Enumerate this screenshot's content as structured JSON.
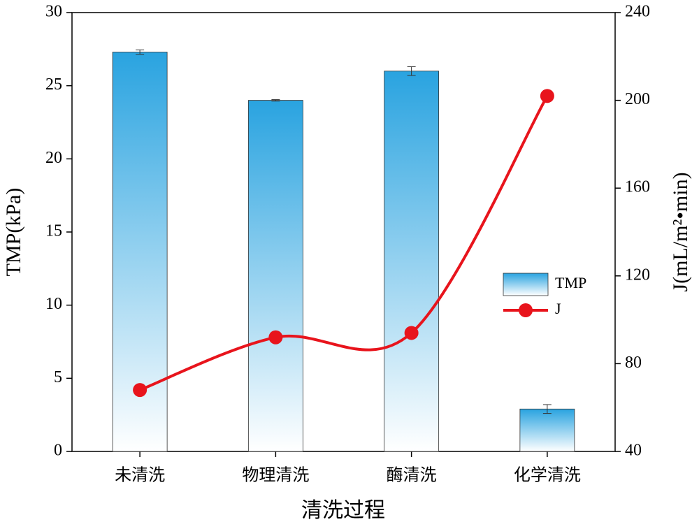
{
  "chart_data": {
    "type": "bar",
    "xlabel": "清洗过程",
    "ylabel": "TMP(kPa)",
    "y2label": "J(mL/m²•min)",
    "categories": [
      "未清洗",
      "物理清洗",
      "酶清洗",
      "化学清洗"
    ],
    "series": [
      {
        "name": "TMP",
        "type": "bar",
        "color": "#29a3e0",
        "values": [
          27.3,
          24.0,
          26.0,
          2.9
        ],
        "errors": [
          0.15,
          0.05,
          0.3,
          0.3
        ]
      },
      {
        "name": "J",
        "type": "line",
        "axis": "y2",
        "color": "#e8141c",
        "values": [
          68,
          92,
          94,
          202
        ]
      }
    ],
    "ylim": [
      0,
      30
    ],
    "yticks": [
      0,
      5,
      10,
      15,
      20,
      25,
      30
    ],
    "y2lim": [
      40,
      240
    ],
    "y2ticks": [
      40,
      80,
      120,
      160,
      200,
      240
    ],
    "legend": "right"
  }
}
